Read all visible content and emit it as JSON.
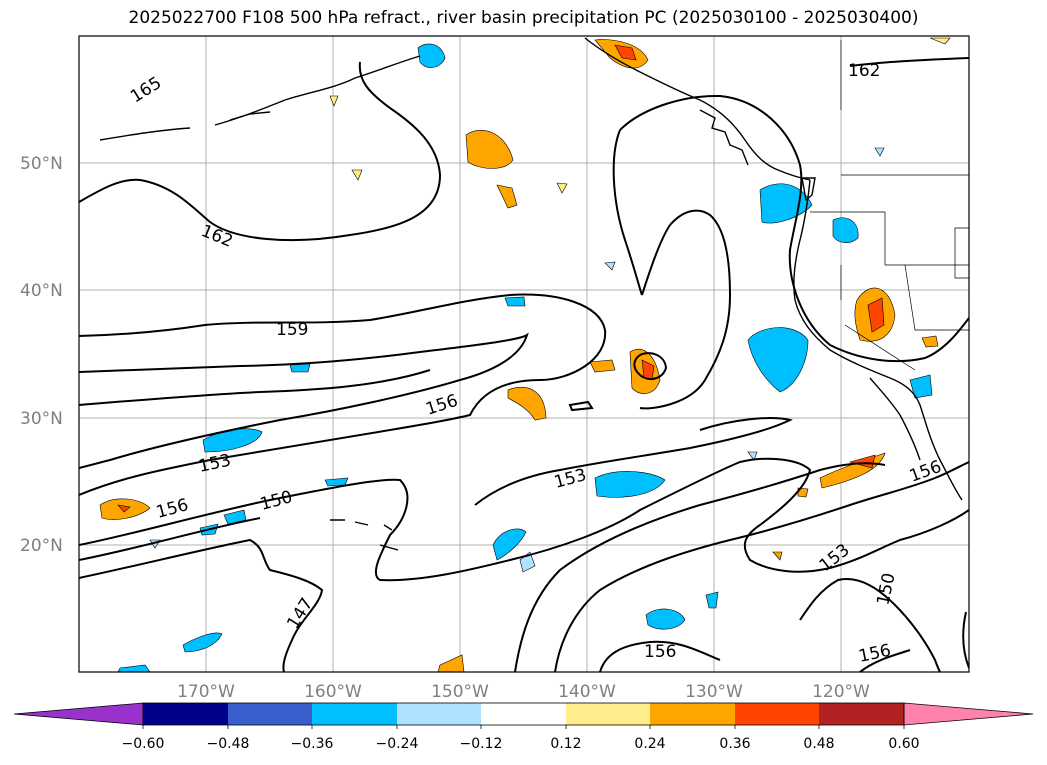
{
  "title": "2025022700 F108 500 hPa refract., river basin precipitation PC (2025030100 - 2025030400)",
  "lat_ticks": [
    "50°N",
    "40°N",
    "30°N",
    "20°N"
  ],
  "lon_ticks": [
    "170°W",
    "160°W",
    "150°W",
    "140°W",
    "130°W",
    "120°W"
  ],
  "contour_labels": [
    "165",
    "162",
    "162",
    "159",
    "156",
    "153",
    "156",
    "150",
    "153",
    "147",
    "156",
    "153",
    "150",
    "156",
    "156"
  ],
  "colorbar": {
    "ticks": [
      "−0.60",
      "−0.48",
      "−0.36",
      "−0.24",
      "−0.12",
      "0.12",
      "0.24",
      "0.36",
      "0.48",
      "0.60"
    ],
    "colors": [
      "#9932cc",
      "#00008b",
      "#3a5fcd",
      "#00bfff",
      "#b0e2ff",
      "#ffffff",
      "#ffec8b",
      "#ffa500",
      "#ff4500",
      "#b22222",
      "#ff82ab"
    ]
  },
  "chart_data": {
    "type": "contour-map",
    "variable": "500 hPa refractivity contours with precipitation PC shading",
    "lon_range": [
      -180,
      -110
    ],
    "lat_range": [
      10,
      60
    ],
    "contour_levels": [
      147,
      150,
      153,
      156,
      159,
      162,
      165
    ],
    "shading_levels": [
      -0.6,
      -0.48,
      -0.36,
      -0.24,
      -0.12,
      0.12,
      0.24,
      0.36,
      0.48,
      0.6
    ],
    "grid": true
  }
}
